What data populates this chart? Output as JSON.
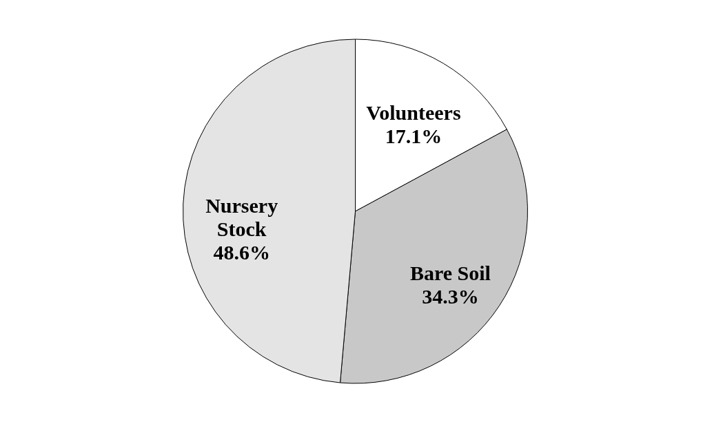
{
  "chart_data": {
    "type": "pie",
    "categories": [
      "Volunteers",
      "Bare Soil",
      "Nursery Stock"
    ],
    "values": [
      17.1,
      34.3,
      48.6
    ],
    "colors": [
      "#ffffff",
      "#c8c8c8",
      "#e4e4e4"
    ],
    "value_labels": [
      "17.1%",
      "34.3%",
      "48.6%"
    ]
  }
}
